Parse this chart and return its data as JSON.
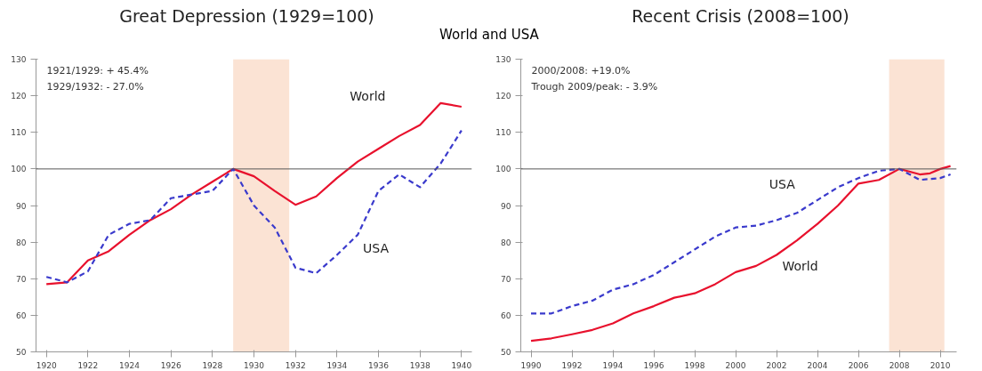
{
  "chart_data": [
    {
      "type": "line",
      "title": "Great Depression (1929=100)",
      "subtitle": "World and USA",
      "series": [
        {
          "name": "World",
          "color": "#e8112d",
          "line_style": "solid",
          "x": [
            1920,
            1921,
            1922,
            1923,
            1924,
            1925,
            1926,
            1927,
            1928,
            1929,
            1930,
            1931,
            1932,
            1933,
            1934,
            1935,
            1936,
            1937,
            1938,
            1939,
            1940
          ],
          "values": [
            68.5,
            69,
            75,
            77.5,
            82,
            86,
            89,
            93,
            96.5,
            100,
            98,
            94,
            90.2,
            92.5,
            97.5,
            102,
            105.5,
            109,
            112,
            118,
            117
          ]
        },
        {
          "name": "USA",
          "color": "#3a3acc",
          "line_style": "dashed",
          "x": [
            1920,
            1921,
            1922,
            1923,
            1924,
            1925,
            1926,
            1927,
            1928,
            1929,
            1930,
            1931,
            1932,
            1933,
            1934,
            1935,
            1936,
            1937,
            1938,
            1939,
            1940
          ],
          "values": [
            70.5,
            69,
            72,
            82,
            85,
            86,
            92,
            93,
            94,
            100,
            90,
            84,
            73,
            71.5,
            76.5,
            82,
            94,
            98.5,
            95,
            101.5,
            110.5
          ]
        }
      ],
      "xlim": [
        1919.5,
        1940.5
      ],
      "xticks": [
        1920,
        1922,
        1924,
        1926,
        1928,
        1930,
        1932,
        1934,
        1936,
        1938,
        1940
      ],
      "ylim": [
        50,
        130
      ],
      "yticks": [
        50,
        60,
        70,
        80,
        90,
        100,
        110,
        120,
        130
      ],
      "ref_lines": [
        {
          "axis": "y",
          "value": 100,
          "color": "#555555"
        }
      ],
      "bands": [
        {
          "axis": "x",
          "from": 1929,
          "to": 1931.7,
          "color": "#fbe3d4"
        }
      ],
      "annotations": [
        "1921/1929: + 45.4%",
        "1929/1932: - 27.0%"
      ],
      "grid": false,
      "legend": false
    },
    {
      "type": "line",
      "title": "Recent Crisis (2008=100)",
      "series": [
        {
          "name": "World",
          "color": "#e8112d",
          "line_style": "solid",
          "x": [
            1990,
            1991,
            1992,
            1993,
            1994,
            1995,
            1996,
            1997,
            1998,
            1999,
            2000,
            2001,
            2002,
            2003,
            2004,
            2005,
            2006,
            2007,
            2008,
            2009,
            2009.5,
            2010,
            2010.5
          ],
          "values": [
            53,
            53.7,
            54.8,
            56,
            57.8,
            60.5,
            62.5,
            64.8,
            66,
            68.5,
            71.8,
            73.5,
            76.5,
            80.5,
            85,
            90,
            96,
            97,
            100,
            98.5,
            98.8,
            100,
            100.8
          ]
        },
        {
          "name": "USA",
          "color": "#3a3acc",
          "line_style": "dashed",
          "x": [
            1990,
            1991,
            1992,
            1993,
            1994,
            1995,
            1996,
            1997,
            1998,
            1999,
            2000,
            2001,
            2002,
            2003,
            2004,
            2005,
            2006,
            2007,
            2008,
            2009,
            2010,
            2010.5
          ],
          "values": [
            60.5,
            60.5,
            62.5,
            64,
            67,
            68.5,
            71,
            74.5,
            78,
            81.5,
            84,
            84.5,
            86,
            88,
            91.5,
            95,
            97.5,
            99.5,
            100,
            97,
            97.5,
            98.5
          ]
        }
      ],
      "xlim": [
        1989.5,
        2010.8
      ],
      "xticks": [
        1990,
        1992,
        1994,
        1996,
        1998,
        2000,
        2002,
        2004,
        2006,
        2008,
        2010
      ],
      "ylim": [
        50,
        130
      ],
      "yticks": [
        50,
        60,
        70,
        80,
        90,
        100,
        110,
        120,
        130
      ],
      "ref_lines": [
        {
          "axis": "y",
          "value": 100,
          "color": "#555555"
        }
      ],
      "bands": [
        {
          "axis": "x",
          "from": 2007.5,
          "to": 2010.2,
          "color": "#fbe3d4"
        }
      ],
      "annotations": [
        "2000/2008:            +19.0%",
        "Trough 2009/peak:  -  3.9%"
      ],
      "grid": false,
      "legend": false
    }
  ]
}
